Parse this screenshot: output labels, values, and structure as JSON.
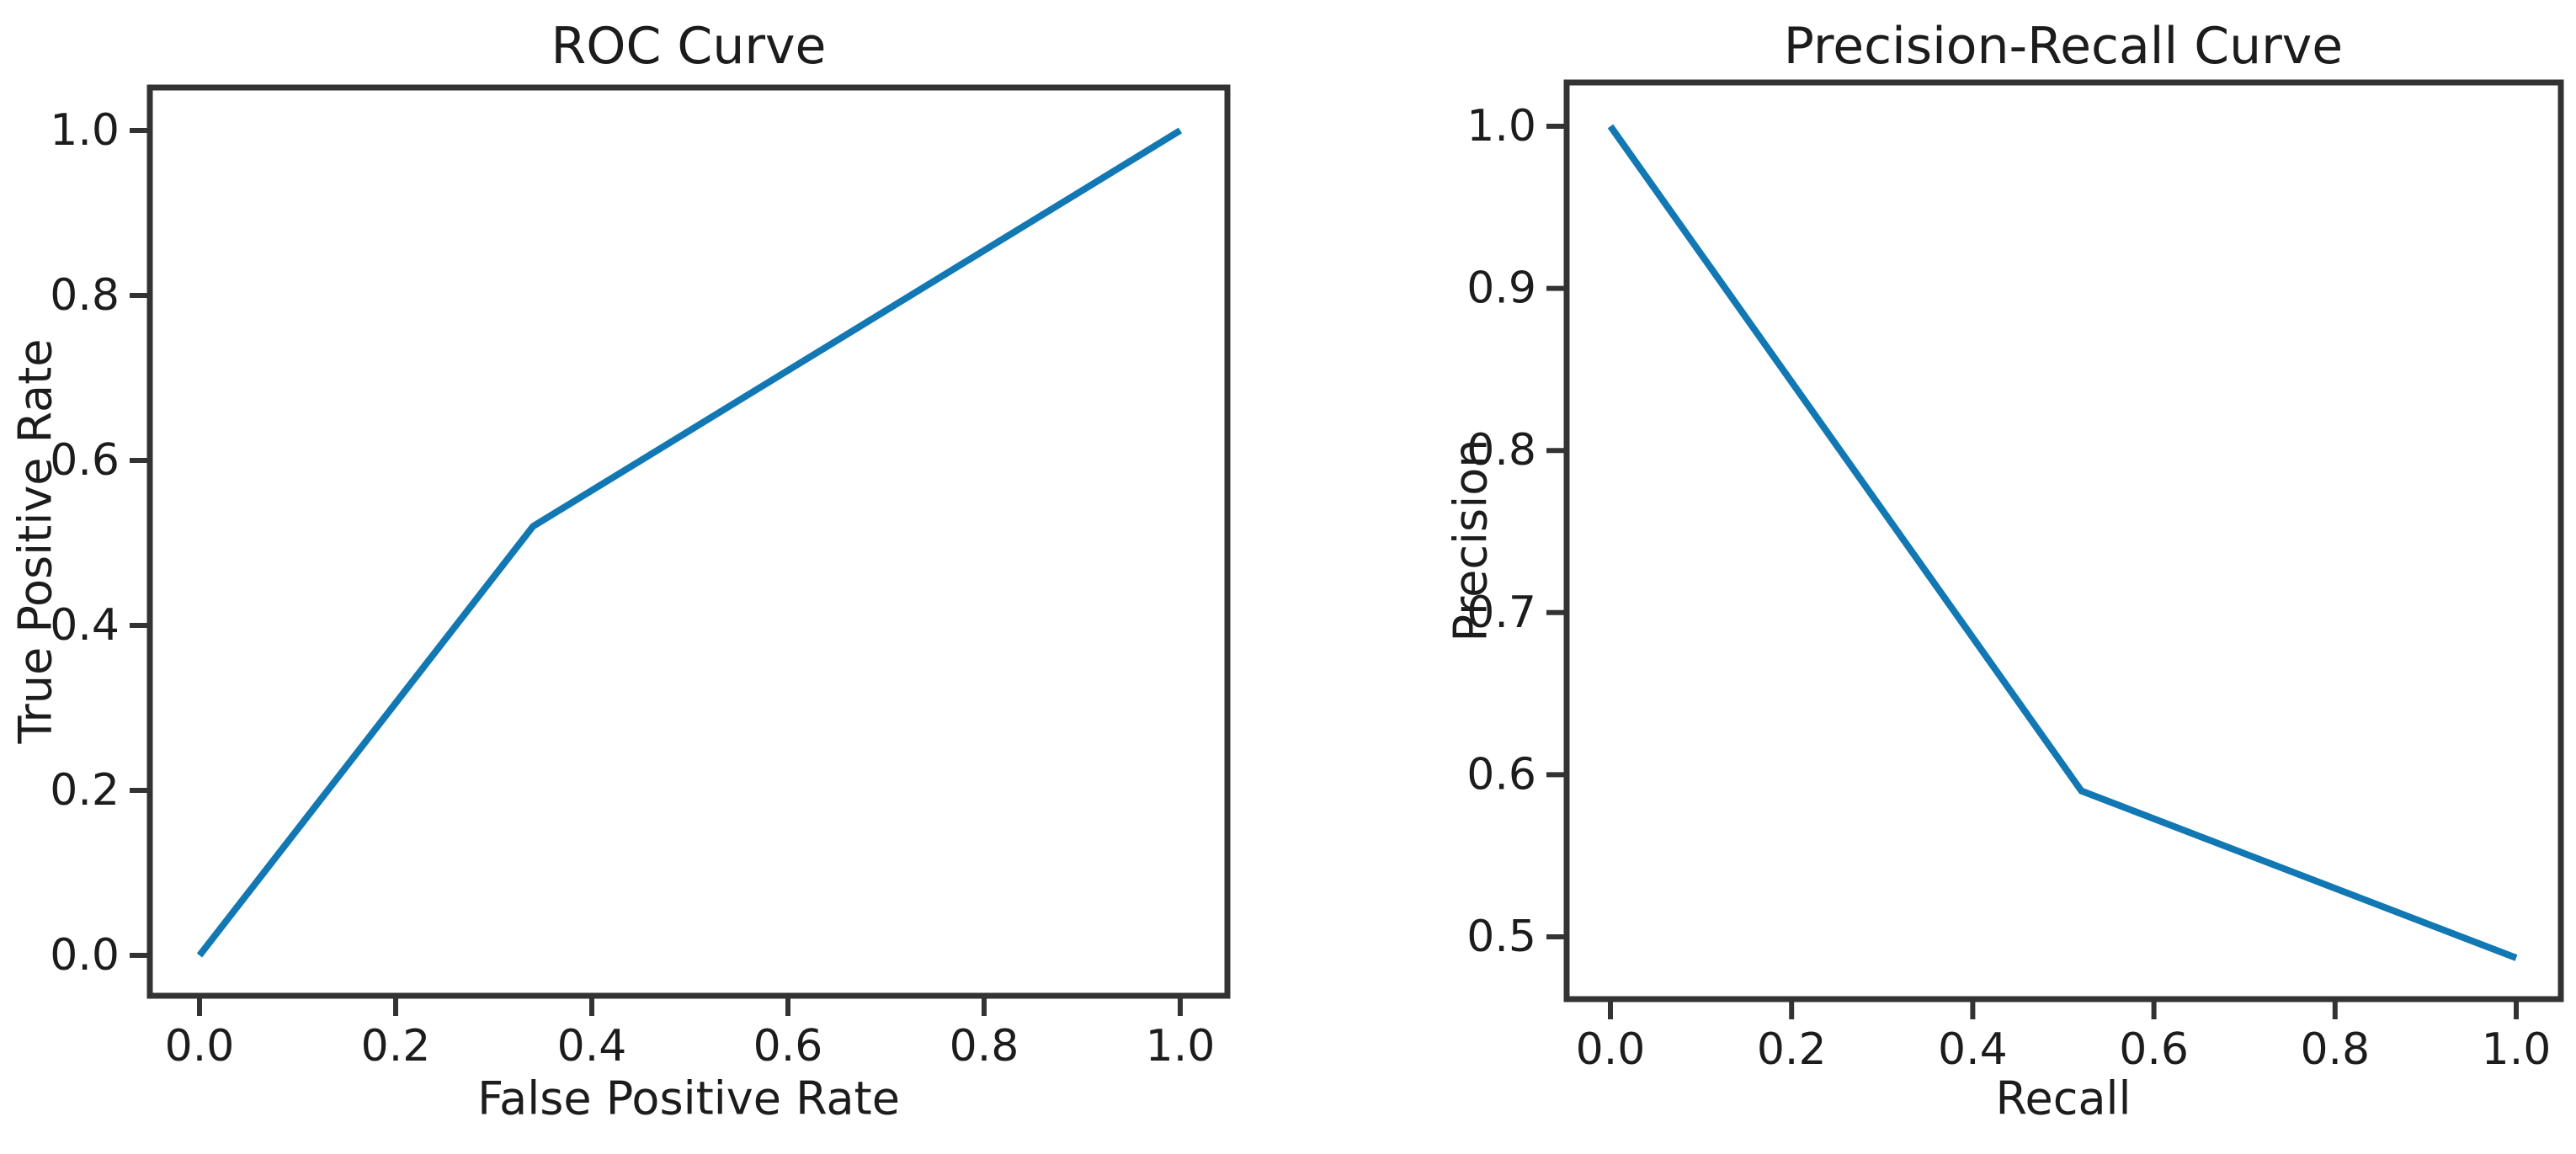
{
  "figure": {
    "background": "#ffffff"
  },
  "colors": {
    "line": "#1178b4",
    "spine": "#333333",
    "text": "#1c1c1c"
  },
  "chart_data": [
    {
      "type": "line",
      "title": "ROC Curve",
      "xlabel": "False Positive Rate",
      "ylabel": "True Positive Rate",
      "xlim": [
        -0.05,
        1.05
      ],
      "ylim": [
        -0.05,
        1.05
      ],
      "grid": false,
      "legend": null,
      "xticks": [
        "0.0",
        "0.2",
        "0.4",
        "0.6",
        "0.8",
        "1.0"
      ],
      "yticks": [
        "0.0",
        "0.2",
        "0.4",
        "0.6",
        "0.8",
        "1.0"
      ],
      "series": [
        {
          "name": "roc-curve",
          "x": [
            0.0,
            0.34,
            1.0
          ],
          "y": [
            0.0,
            0.52,
            1.0
          ]
        }
      ]
    },
    {
      "type": "line",
      "title": "Precision-Recall Curve",
      "xlabel": "Recall",
      "ylabel": "Precision",
      "xlim": [
        -0.05,
        1.05
      ],
      "ylim": [
        0.46,
        1.03
      ],
      "grid": false,
      "legend": null,
      "xticks": [
        "0.0",
        "0.2",
        "0.4",
        "0.6",
        "0.8",
        "1.0"
      ],
      "yticks": [
        "0.5",
        "0.6",
        "0.7",
        "0.8",
        "0.9",
        "1.0"
      ],
      "series": [
        {
          "name": "precision-recall-curve",
          "x": [
            0.0,
            0.52,
            1.0
          ],
          "y": [
            1.0,
            0.59,
            0.487
          ]
        }
      ]
    }
  ]
}
